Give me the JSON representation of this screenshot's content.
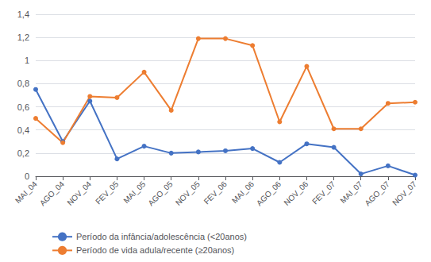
{
  "chart_data": {
    "type": "line",
    "categories": [
      "MAI_04",
      "AGO_04",
      "NOV_04",
      "FEV_05",
      "MAI_05",
      "AGO_05",
      "NOV_05",
      "FEV_06",
      "MAI_06",
      "AGO_06",
      "NOV_06",
      "FEV_07",
      "MAI_07",
      "AGO_07",
      "NOV_07"
    ],
    "series": [
      {
        "name": "Período da infância/adolescência (<20anos)",
        "color": "#4472C4",
        "values": [
          0.75,
          0.3,
          0.65,
          0.15,
          0.26,
          0.2,
          0.21,
          0.22,
          0.24,
          0.12,
          0.28,
          0.25,
          0.02,
          0.09,
          0.01
        ]
      },
      {
        "name": "Período de vida adula/recente (≥20anos)",
        "color": "#ED7D31",
        "values": [
          0.5,
          0.29,
          0.69,
          0.68,
          0.9,
          0.57,
          1.19,
          1.19,
          1.13,
          0.47,
          0.95,
          0.41,
          0.41,
          0.63,
          0.64
        ]
      }
    ],
    "ylim": [
      0,
      1.4
    ],
    "yticks": [
      0,
      {
        "value": 0.2,
        "label": "0,2"
      },
      {
        "value": 0.4,
        "label": "0,4"
      },
      {
        "value": 0.6,
        "label": "0,6"
      },
      {
        "value": 0.8,
        "label": "0,8"
      },
      1,
      {
        "value": 1.2,
        "label": "1,2"
      },
      {
        "value": 1.4,
        "label": "1,4"
      }
    ],
    "grid": true,
    "legend": "bottom",
    "marker": "circle"
  }
}
